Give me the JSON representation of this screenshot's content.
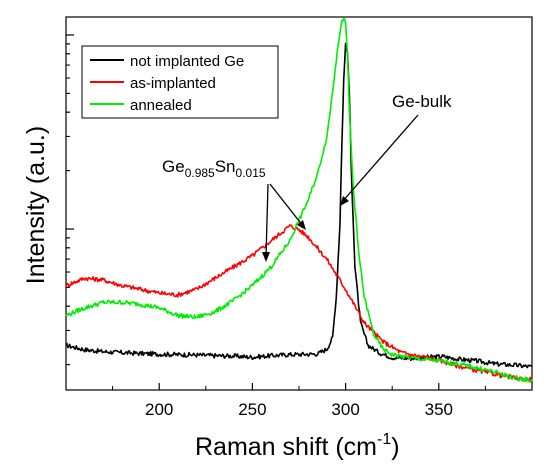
{
  "chart_data": {
    "type": "line",
    "xlabel": "Raman shift (cm",
    "xlabel_sup": "-1",
    "xlabel_close": ")",
    "ylabel": "Intensity (a.u.)",
    "xlim": [
      150,
      400
    ],
    "ylim": [
      0,
      1
    ],
    "y_scale": "log",
    "x_ticks": [
      200,
      250,
      300,
      350
    ],
    "grid": false,
    "legend_position": "top-left",
    "series": [
      {
        "name": "not implanted Ge",
        "color": "#000000",
        "x": [
          150,
          160,
          170,
          180,
          190,
          200,
          210,
          220,
          230,
          240,
          250,
          260,
          270,
          280,
          285,
          290,
          293,
          295,
          297,
          298,
          299,
          300,
          301,
          302,
          303,
          305,
          308,
          312,
          318,
          325,
          335,
          345,
          352,
          360,
          370,
          380,
          390,
          400
        ],
        "y": [
          0.12,
          0.108,
          0.103,
          0.1,
          0.098,
          0.096,
          0.095,
          0.094,
          0.092,
          0.091,
          0.088,
          0.092,
          0.095,
          0.096,
          0.097,
          0.11,
          0.14,
          0.25,
          0.45,
          0.66,
          0.83,
          0.93,
          0.9,
          0.8,
          0.6,
          0.33,
          0.18,
          0.12,
          0.1,
          0.087,
          0.085,
          0.088,
          0.09,
          0.083,
          0.078,
          0.07,
          0.067,
          0.062
        ]
      },
      {
        "name": "as-implanted",
        "color": "#ff0000",
        "x": [
          150,
          160,
          170,
          180,
          190,
          200,
          210,
          220,
          230,
          240,
          250,
          260,
          265,
          270,
          275,
          280,
          290,
          300,
          310,
          320,
          330,
          340,
          350,
          360,
          370,
          380,
          390,
          400
        ],
        "y": [
          0.28,
          0.3,
          0.295,
          0.28,
          0.27,
          0.26,
          0.255,
          0.27,
          0.3,
          0.33,
          0.36,
          0.4,
          0.42,
          0.44,
          0.43,
          0.41,
          0.35,
          0.27,
          0.18,
          0.13,
          0.1,
          0.09,
          0.08,
          0.065,
          0.053,
          0.043,
          0.033,
          0.028
        ]
      },
      {
        "name": "annealed",
        "color": "#00ee00",
        "x": [
          150,
          160,
          170,
          180,
          190,
          200,
          210,
          220,
          230,
          240,
          250,
          260,
          270,
          280,
          285,
          290,
          293,
          296,
          298,
          299,
          300,
          301,
          302,
          304,
          307,
          310,
          315,
          320,
          325,
          330,
          340,
          350,
          360,
          370,
          380,
          390,
          400
        ],
        "y": [
          0.2,
          0.22,
          0.235,
          0.235,
          0.23,
          0.22,
          0.2,
          0.195,
          0.21,
          0.24,
          0.28,
          0.33,
          0.4,
          0.51,
          0.58,
          0.68,
          0.8,
          0.93,
          0.985,
          1.0,
          0.98,
          0.9,
          0.75,
          0.55,
          0.37,
          0.25,
          0.15,
          0.11,
          0.095,
          0.09,
          0.083,
          0.078,
          0.07,
          0.06,
          0.048,
          0.033,
          0.025
        ]
      }
    ],
    "annotations": [
      {
        "text": "Ge-bulk",
        "points_to": [
          300,
          0.5
        ]
      },
      {
        "text_main": "Ge",
        "sub1": "0.985",
        "text_mid": "Sn",
        "sub2": "0.015",
        "points_to": [
          [
            262,
            0.4
          ],
          [
            280,
            0.48
          ]
        ]
      }
    ]
  }
}
